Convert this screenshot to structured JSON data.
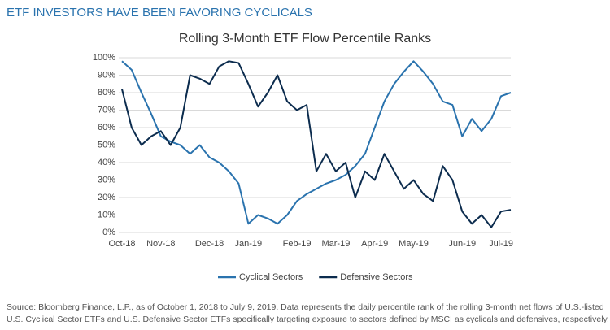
{
  "header": "ETF INVESTORS HAVE BEEN FAVORING CYCLICALS",
  "chart_data": {
    "type": "line",
    "title": "Rolling 3-Month ETF Flow Percentile Ranks",
    "categories": [
      "Oct-18",
      null,
      null,
      null,
      "Nov-18",
      null,
      null,
      null,
      null,
      "Dec-18",
      null,
      null,
      null,
      "Jan-19",
      null,
      null,
      null,
      null,
      "Feb-19",
      null,
      null,
      null,
      "Mar-19",
      null,
      null,
      null,
      "Apr-19",
      null,
      null,
      null,
      "May-19",
      null,
      null,
      null,
      null,
      "Jun-19",
      null,
      null,
      null,
      "Jul-19",
      null
    ],
    "series": [
      {
        "name": "Cyclical Sectors",
        "color": "#2a73ae",
        "values": [
          98,
          93,
          80,
          68,
          55,
          52,
          50,
          45,
          50,
          43,
          40,
          35,
          28,
          5,
          10,
          8,
          5,
          10,
          18,
          22,
          25,
          28,
          30,
          33,
          38,
          45,
          60,
          75,
          85,
          92,
          98,
          92,
          85,
          75,
          73,
          55,
          65,
          58,
          65,
          78,
          80
        ]
      },
      {
        "name": "Defensive Sectors",
        "color": "#0c2c4e",
        "values": [
          82,
          60,
          50,
          55,
          58,
          50,
          60,
          90,
          88,
          85,
          95,
          98,
          97,
          85,
          72,
          80,
          90,
          75,
          70,
          73,
          35,
          45,
          35,
          40,
          20,
          35,
          30,
          45,
          35,
          25,
          30,
          22,
          18,
          38,
          30,
          12,
          5,
          10,
          3,
          12,
          13
        ]
      }
    ],
    "ylim": [
      0,
      100
    ],
    "yticks": [
      {
        "value": 0,
        "label": "0%"
      },
      {
        "value": 10,
        "label": "10%"
      },
      {
        "value": 20,
        "label": "20%"
      },
      {
        "value": 30,
        "label": "30%"
      },
      {
        "value": 40,
        "label": "40%"
      },
      {
        "value": 50,
        "label": "50%"
      },
      {
        "value": 60,
        "label": "60%"
      },
      {
        "value": 70,
        "label": "70%"
      },
      {
        "value": 80,
        "label": "80%"
      },
      {
        "value": 90,
        "label": "90%"
      },
      {
        "value": 100,
        "label": "100%"
      }
    ],
    "grid": true,
    "legend": "bottom"
  },
  "footnote": [
    "Source: Bloomberg Finance, L.P., as of October 1, 2018 to July 9, 2019. Data represents the daily percentile rank of the rolling 3-month net flows of U.S.-listed",
    "U.S. Cyclical Sector ETFs and U.S. Defensive Sector ETFs specifically targeting exposure to sectors defined by MSCI as cyclicals and defensives, respectively."
  ]
}
